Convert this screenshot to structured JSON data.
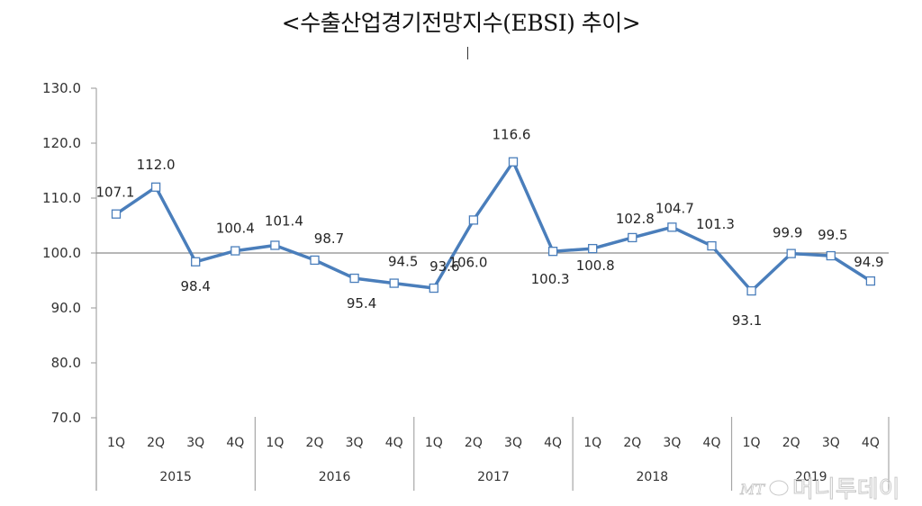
{
  "title": "<수출산업경기전망지수(EBSI) 추이>",
  "watermark": {
    "logo": "MT",
    "text": "머니투데이"
  },
  "colors": {
    "line": "#4a7ebb",
    "marker_fill": "#ffffff",
    "axis": "#a6a6a6",
    "baseline": "#8c8c8c",
    "text": "#333333"
  },
  "chart_data": {
    "type": "line",
    "title": "<수출산업경기전망지수(EBSI) 추이>",
    "xlabel": "",
    "ylabel": "",
    "ylim": [
      70,
      130
    ],
    "yticks": [
      "130.0",
      "120.0",
      "110.0",
      "100.0",
      "90.0",
      "80.0",
      "70.0"
    ],
    "grid": false,
    "reference_line": 100.0,
    "legend": null,
    "years": [
      "2015",
      "2016",
      "2017",
      "2018",
      "2019"
    ],
    "quarters": [
      "1Q",
      "2Q",
      "3Q",
      "4Q"
    ],
    "categories": [
      "2015 1Q",
      "2015 2Q",
      "2015 3Q",
      "2015 4Q",
      "2016 1Q",
      "2016 2Q",
      "2016 3Q",
      "2016 4Q",
      "2017 1Q",
      "2017 2Q",
      "2017 3Q",
      "2017 4Q",
      "2018 1Q",
      "2018 2Q",
      "2018 3Q",
      "2018 4Q",
      "2019 1Q",
      "2019 2Q",
      "2019 3Q",
      "2019 4Q"
    ],
    "series": [
      {
        "name": "EBSI",
        "values": [
          107.1,
          112.0,
          98.4,
          100.4,
          101.4,
          98.7,
          95.4,
          94.5,
          93.6,
          106.0,
          116.6,
          100.3,
          100.8,
          102.8,
          104.7,
          101.3,
          93.1,
          99.9,
          99.5,
          94.9
        ]
      }
    ],
    "labels": [
      "107.1",
      "112.0",
      "98.4",
      "100.4",
      "101.4",
      "98.7",
      "95.4",
      "94.5",
      "93.6",
      "106.0",
      "116.6",
      "100.3",
      "100.8",
      "102.8",
      "104.7",
      "101.3",
      "93.1",
      "99.9",
      "99.5",
      "94.9"
    ]
  }
}
